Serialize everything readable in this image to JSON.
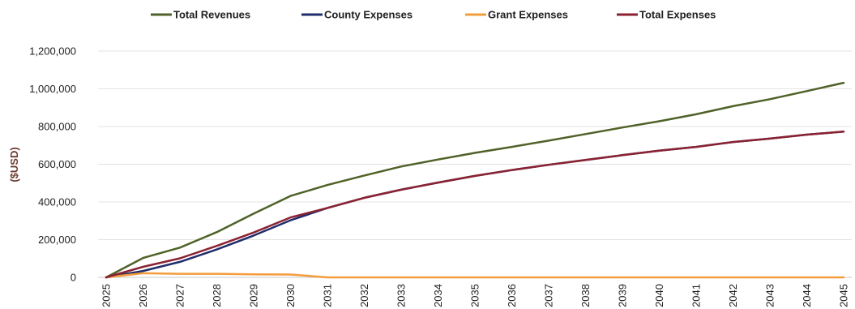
{
  "chart_data": {
    "type": "line",
    "title": "",
    "xlabel": "",
    "ylabel": "($USD)",
    "categories": [
      "2025",
      "2026",
      "2027",
      "2028",
      "2029",
      "2030",
      "2031",
      "2032",
      "2033",
      "2034",
      "2035",
      "2036",
      "2037",
      "2038",
      "2039",
      "2040",
      "2041",
      "2042",
      "2043",
      "2044",
      "2045"
    ],
    "ylim": [
      0,
      1200000
    ],
    "yticks": [
      {
        "value": 0,
        "label": "0"
      },
      {
        "value": 200000,
        "label": "200,000"
      },
      {
        "value": 400000,
        "label": "400,000"
      },
      {
        "value": 600000,
        "label": "600,000"
      },
      {
        "value": 800000,
        "label": "800,000"
      },
      {
        "value": 1000000,
        "label": "1,000,000"
      },
      {
        "value": 1200000,
        "label": "1,200,000"
      }
    ],
    "grid": true,
    "legend_position": "top",
    "series": [
      {
        "name": "Total Revenues",
        "color": "#4f6228",
        "values": [
          0,
          103000,
          158000,
          240000,
          338000,
          432000,
          490000,
          540000,
          588000,
          625000,
          660000,
          692000,
          725000,
          760000,
          795000,
          828000,
          865000,
          908000,
          945000,
          988000,
          1032000
        ]
      },
      {
        "name": "County Expenses",
        "color": "#1f2d6b",
        "values": [
          0,
          34000,
          82000,
          148000,
          222000,
          303000,
          368000,
          422000,
          465000,
          503000,
          538000,
          569000,
          597000,
          623000,
          648000,
          672000,
          692000,
          718000,
          736000,
          757000,
          773000
        ]
      },
      {
        "name": "Grant Expenses",
        "color": "#f39c3c",
        "values": [
          0,
          22000,
          19000,
          19000,
          16000,
          15000,
          0,
          0,
          0,
          0,
          0,
          0,
          0,
          0,
          0,
          0,
          0,
          0,
          0,
          0,
          0
        ]
      },
      {
        "name": "Total Expenses",
        "color": "#8b2232",
        "values": [
          0,
          56000,
          101000,
          167000,
          238000,
          318000,
          368000,
          422000,
          465000,
          503000,
          538000,
          569000,
          597000,
          623000,
          648000,
          672000,
          692000,
          718000,
          736000,
          757000,
          773000
        ]
      }
    ]
  }
}
